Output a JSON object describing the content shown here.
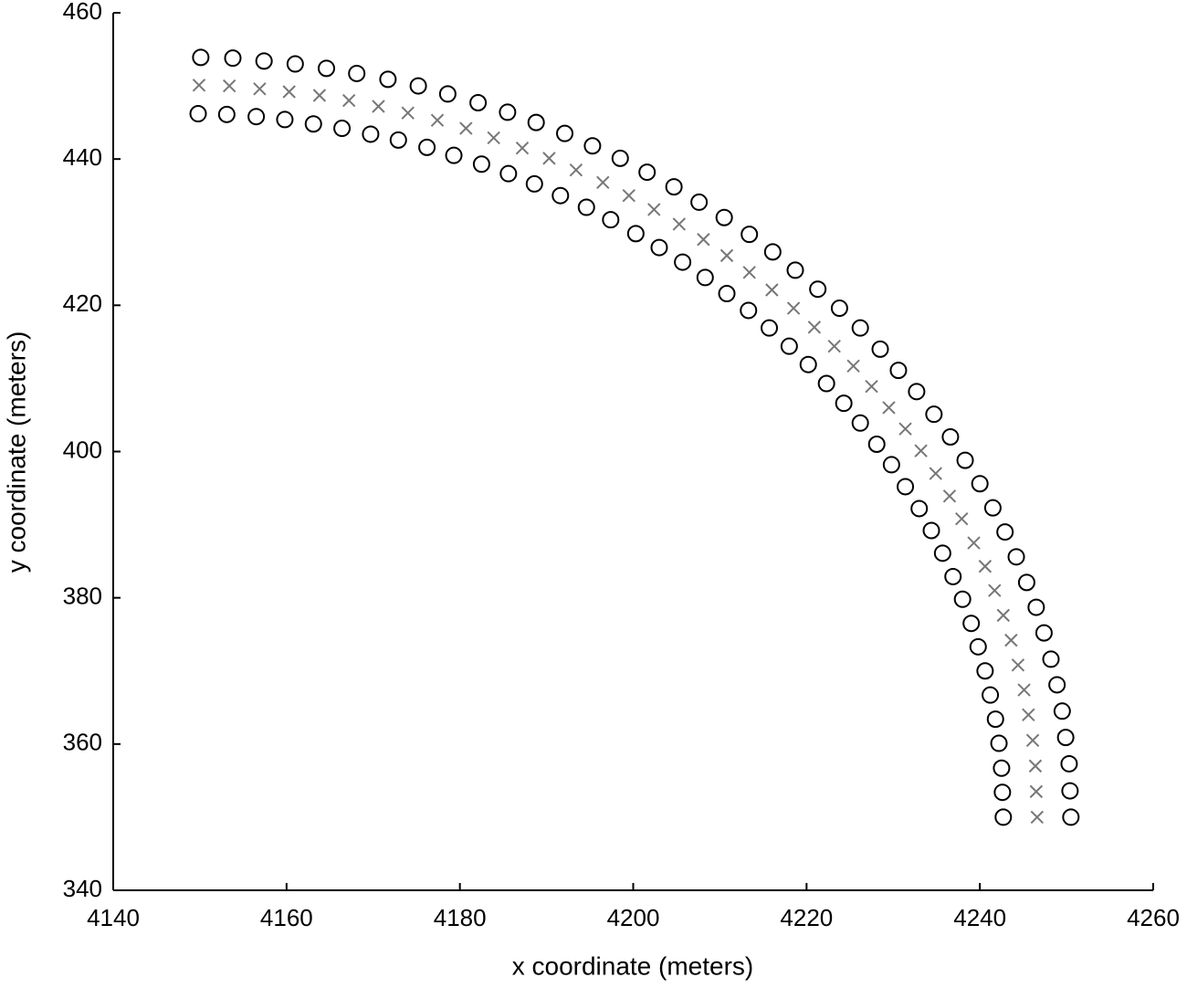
{
  "chart_data": {
    "type": "scatter",
    "xlabel": "x coordinate (meters)",
    "ylabel": "y coordinate (meters)",
    "xlim": [
      4140,
      4260
    ],
    "xticks": [
      4140,
      4160,
      4180,
      4200,
      4220,
      4240,
      4260
    ],
    "ylim": [
      340,
      460
    ],
    "yticks": [
      340,
      360,
      380,
      400,
      420,
      440,
      460
    ],
    "series": [
      {
        "marker": "circle",
        "color": "#000000",
        "x": [
          4150.1,
          4153.8,
          4157.4,
          4161.0,
          4164.6,
          4168.1,
          4171.7,
          4175.2,
          4178.6,
          4182.1,
          4185.5,
          4188.8,
          4192.1,
          4195.3,
          4198.5,
          4201.6,
          4204.7,
          4207.6,
          4210.5,
          4213.4,
          4216.1,
          4218.7,
          4221.3,
          4223.8,
          4226.2,
          4228.5,
          4230.6,
          4232.7,
          4234.7,
          4236.6,
          4238.3,
          4240.0,
          4241.5,
          4242.9,
          4244.2,
          4245.4,
          4246.5,
          4247.4,
          4248.2,
          4248.9,
          4249.5,
          4249.9,
          4250.3,
          4250.4,
          4250.5
        ],
        "values": [
          453.9,
          453.8,
          453.4,
          453.0,
          452.4,
          451.7,
          450.9,
          450.0,
          448.9,
          447.7,
          446.4,
          445.0,
          443.5,
          441.8,
          440.1,
          438.2,
          436.2,
          434.1,
          432.0,
          429.7,
          427.3,
          424.8,
          422.2,
          419.6,
          416.9,
          414.0,
          411.1,
          408.2,
          405.1,
          402.0,
          398.8,
          395.6,
          392.3,
          389.0,
          385.6,
          382.1,
          378.7,
          375.2,
          371.6,
          368.1,
          364.5,
          360.9,
          357.3,
          353.6,
          350.0
        ]
      },
      {
        "marker": "circle",
        "color": "#000000",
        "x": [
          4149.8,
          4153.1,
          4156.5,
          4159.8,
          4163.1,
          4166.4,
          4169.7,
          4172.9,
          4176.2,
          4179.3,
          4182.5,
          4185.6,
          4188.6,
          4191.6,
          4194.6,
          4197.4,
          4200.3,
          4203.0,
          4205.7,
          4208.3,
          4210.8,
          4213.3,
          4215.7,
          4218.0,
          4220.2,
          4222.3,
          4224.3,
          4226.2,
          4228.1,
          4229.8,
          4231.4,
          4233.0,
          4234.4,
          4235.7,
          4236.9,
          4238.0,
          4239.0,
          4239.8,
          4240.6,
          4241.2,
          4241.8,
          4242.2,
          4242.5,
          4242.6,
          4242.7
        ],
        "values": [
          446.2,
          446.1,
          445.8,
          445.4,
          444.8,
          444.2,
          443.4,
          442.6,
          441.6,
          440.5,
          439.3,
          438.0,
          436.6,
          435.0,
          433.4,
          431.7,
          429.8,
          427.9,
          425.9,
          423.8,
          421.6,
          419.3,
          416.9,
          414.4,
          411.9,
          409.3,
          406.6,
          403.9,
          401.0,
          398.2,
          395.2,
          392.2,
          389.2,
          386.1,
          382.9,
          379.8,
          376.5,
          373.3,
          370.0,
          366.7,
          363.4,
          360.1,
          356.7,
          353.4,
          350.0
        ]
      },
      {
        "marker": "cross",
        "color": "#777777",
        "x": [
          4149.9,
          4153.4,
          4156.9,
          4160.3,
          4163.8,
          4167.2,
          4170.6,
          4174.0,
          4177.4,
          4180.7,
          4183.9,
          4187.2,
          4190.3,
          4193.4,
          4196.5,
          4199.5,
          4202.4,
          4205.3,
          4208.1,
          4210.8,
          4213.4,
          4216.0,
          4218.5,
          4220.9,
          4223.2,
          4225.4,
          4227.5,
          4229.5,
          4231.4,
          4233.2,
          4234.9,
          4236.5,
          4237.9,
          4239.3,
          4240.6,
          4241.7,
          4242.7,
          4243.6,
          4244.4,
          4245.1,
          4245.6,
          4246.1,
          4246.4,
          4246.5,
          4246.6
        ],
        "values": [
          450.1,
          450.0,
          449.6,
          449.2,
          448.7,
          448.0,
          447.2,
          446.3,
          445.3,
          444.2,
          442.9,
          441.5,
          440.1,
          438.5,
          436.8,
          435.0,
          433.1,
          431.1,
          429.0,
          426.8,
          424.5,
          422.1,
          419.6,
          417.0,
          414.4,
          411.7,
          408.9,
          406.0,
          403.1,
          400.1,
          397.0,
          393.9,
          390.8,
          387.5,
          384.3,
          381.0,
          377.6,
          374.2,
          370.8,
          367.4,
          364.0,
          360.5,
          357.0,
          353.5,
          350.0
        ]
      }
    ]
  }
}
